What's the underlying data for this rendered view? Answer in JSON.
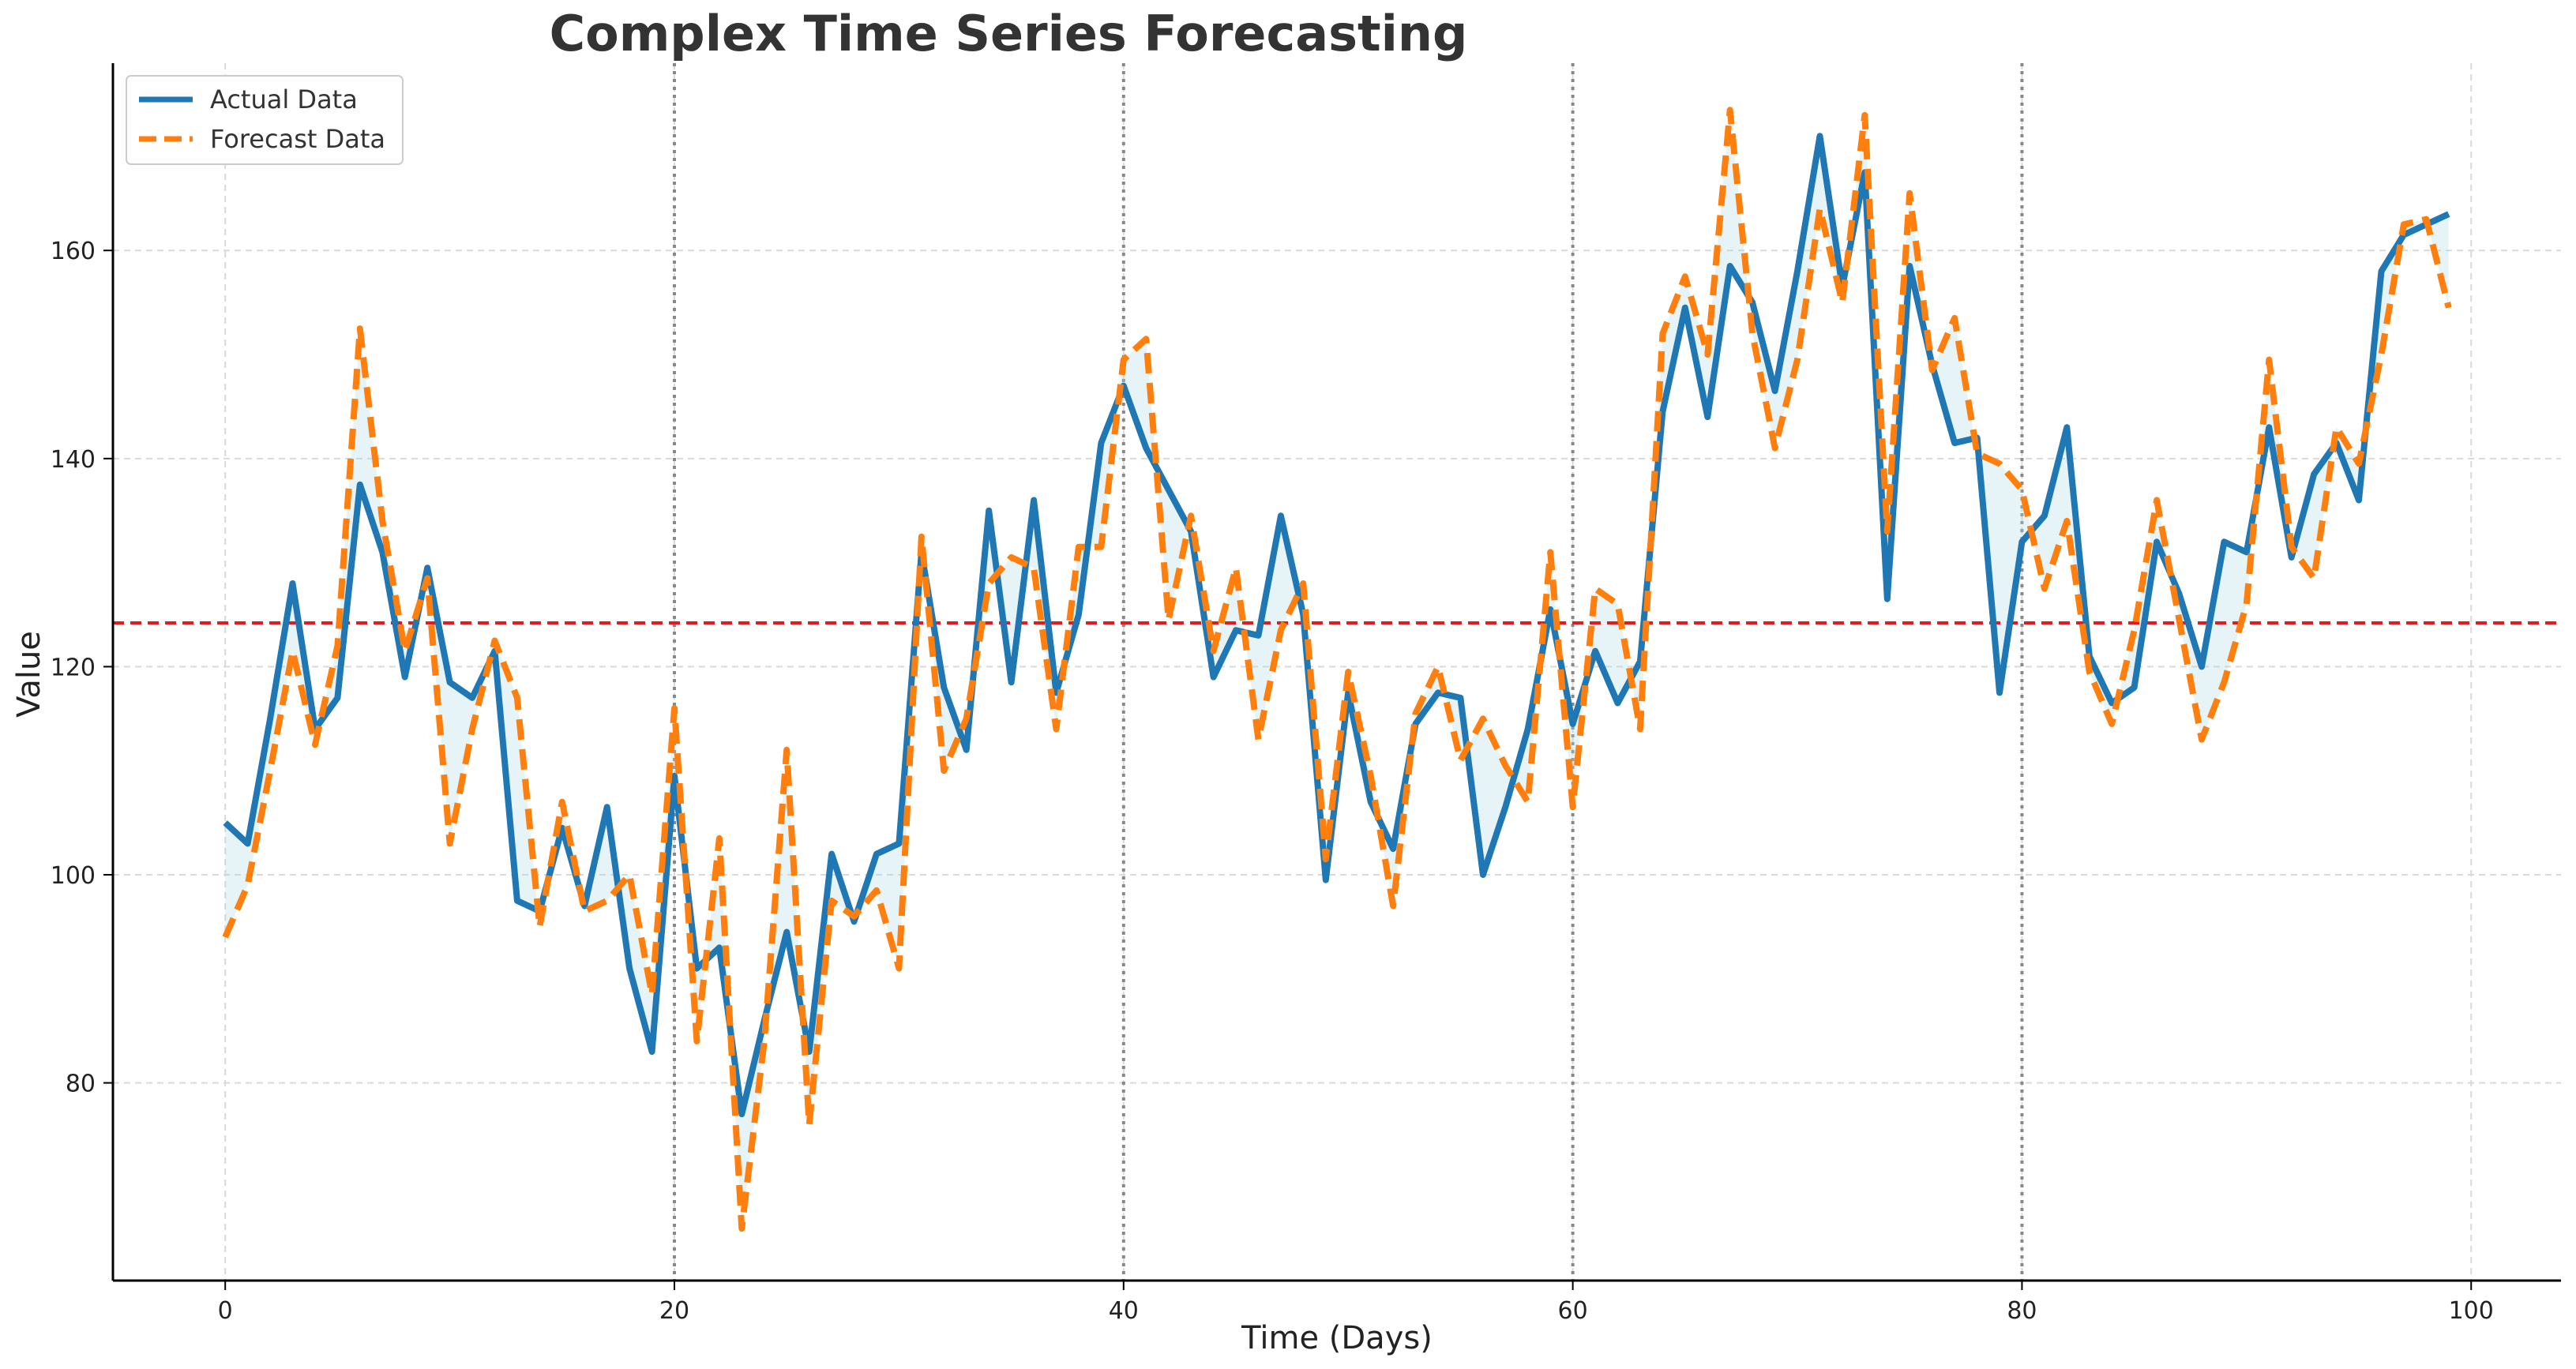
{
  "chart_data": {
    "type": "line",
    "title": "Complex Time Series Forecasting",
    "xlabel": "Time (Days)",
    "ylabel": "Value",
    "xlim": [
      -5,
      104
    ],
    "ylim": [
      61,
      178
    ],
    "xticks": [
      0,
      20,
      40,
      60,
      80,
      100
    ],
    "yticks": [
      80,
      100,
      120,
      140,
      160
    ],
    "grid": true,
    "legend_position": "top-left",
    "reference_line": {
      "y": 124.2,
      "color": "#e41a1c",
      "style": "dashed"
    },
    "vertical_markers": [
      20,
      40,
      60,
      80
    ],
    "fill_between": {
      "color": "#add8e6"
    },
    "x": [
      0,
      1,
      2,
      3,
      4,
      5,
      6,
      7,
      8,
      9,
      10,
      11,
      12,
      13,
      14,
      15,
      16,
      17,
      18,
      19,
      20,
      21,
      22,
      23,
      24,
      25,
      26,
      27,
      28,
      29,
      30,
      31,
      32,
      33,
      34,
      35,
      36,
      37,
      38,
      39,
      40,
      41,
      42,
      43,
      44,
      45,
      46,
      47,
      48,
      49,
      50,
      51,
      52,
      53,
      54,
      55,
      56,
      57,
      58,
      59,
      60,
      61,
      62,
      63,
      64,
      65,
      66,
      67,
      68,
      69,
      70,
      71,
      72,
      73,
      74,
      75,
      76,
      77,
      78,
      79,
      80,
      81,
      82,
      83,
      84,
      85,
      86,
      87,
      88,
      89,
      90,
      91,
      92,
      93,
      94,
      95,
      96,
      97,
      98,
      99
    ],
    "series": [
      {
        "name": "Actual Data",
        "color": "#1f77b4",
        "style": "solid",
        "values": [
          105,
          103,
          115,
          128,
          114,
          117,
          137.5,
          131,
          119,
          129.5,
          118.5,
          117,
          121.5,
          97.5,
          96.5,
          104.5,
          97,
          106.5,
          91,
          83,
          109.5,
          91,
          93,
          77,
          86,
          94.5,
          83,
          102,
          95.5,
          102,
          103,
          131,
          118,
          112,
          135,
          118.5,
          136,
          117.5,
          125,
          141.5,
          147,
          141,
          137,
          133,
          119,
          123.5,
          123,
          134.5,
          125,
          99.5,
          117.5,
          107,
          102.5,
          114.5,
          117.5,
          117,
          100,
          106.5,
          114,
          125.5,
          114.5,
          121.5,
          116.5,
          120.5,
          144.5,
          154.5,
          144,
          158.5,
          155,
          146.5,
          158,
          171,
          156.5,
          167.5,
          126.5,
          158.5,
          149,
          141.5,
          142,
          117.5,
          132,
          134.5,
          143,
          121,
          116.5,
          118,
          132,
          127,
          120,
          132,
          131,
          143,
          130.5,
          138.5,
          141.5,
          136,
          158,
          161.5,
          162.5,
          163.5
        ]
      },
      {
        "name": "Forecast Data",
        "color": "#ff7f0e",
        "style": "dashed",
        "values": [
          94,
          99,
          110,
          121.5,
          112.5,
          122,
          152.5,
          134,
          121.5,
          128.5,
          103,
          114,
          122.5,
          117,
          95,
          107,
          96.5,
          97.5,
          100,
          88.5,
          116,
          84,
          103.5,
          66,
          84,
          112,
          76,
          97.5,
          96,
          98.5,
          91,
          132.5,
          110,
          115,
          128,
          130.5,
          129.5,
          114,
          131.5,
          131.5,
          149.5,
          151.5,
          124.5,
          134.5,
          121.5,
          129.5,
          113,
          123.5,
          128,
          101.5,
          119.5,
          109.5,
          97,
          115.5,
          120,
          111,
          115,
          110.5,
          107,
          131,
          106.5,
          127.5,
          126,
          114,
          152,
          157.5,
          150,
          173.5,
          152,
          141,
          149.5,
          164,
          155,
          173,
          133,
          165.5,
          148.5,
          153.5,
          140.5,
          139.5,
          137,
          127.5,
          134,
          119.5,
          114.5,
          123.5,
          136,
          124.5,
          113,
          118.5,
          126,
          149.5,
          131.5,
          128.5,
          143,
          139.5,
          150,
          162.5,
          163,
          154.5
        ]
      }
    ]
  }
}
